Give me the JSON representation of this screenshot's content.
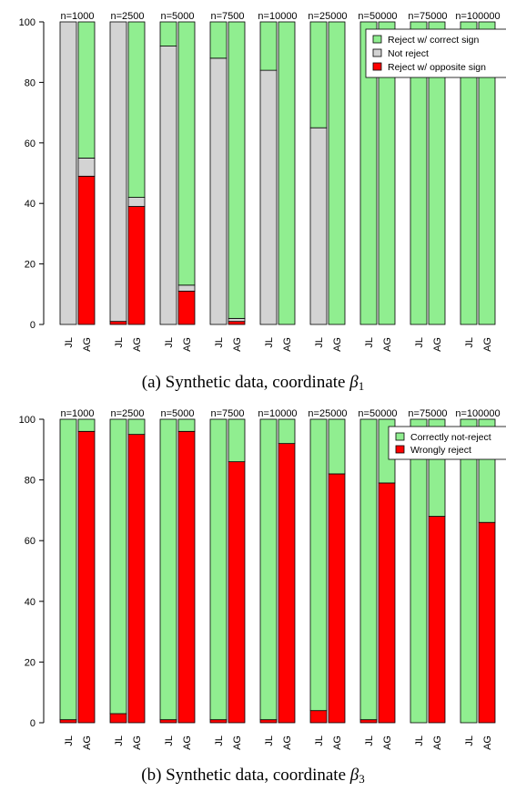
{
  "chart_data": [
    {
      "type": "bar",
      "stacked": true,
      "panel_caption": "(a)  Synthetic data, coordinate β1",
      "caption_prefix": "(a)  Synthetic data, coordinate ",
      "caption_symbol": "β",
      "caption_sub": "1",
      "groups": [
        "n=1000",
        "n=2500",
        "n=5000",
        "n=7500",
        "n=10000",
        "n=25000",
        "n=50000",
        "n=75000",
        "n=100000"
      ],
      "bar_labels": [
        "JL",
        "AG"
      ],
      "ylim": [
        0,
        100
      ],
      "yticks": [
        "0",
        "20",
        "40",
        "60",
        "80",
        "100"
      ],
      "grid": false,
      "legend_position": "top-right",
      "series": [
        {
          "name": "Reject w/ opposite sign",
          "color": "#ff0000",
          "JL": [
            0,
            1,
            0,
            0,
            0,
            0,
            0,
            0,
            0
          ],
          "AG": [
            49,
            39,
            11,
            1,
            0,
            0,
            0,
            0,
            0
          ]
        },
        {
          "name": "Not reject",
          "color": "#d3d3d3",
          "JL": [
            100,
            99,
            92,
            88,
            84,
            65,
            0,
            0,
            0
          ],
          "AG": [
            6,
            3,
            2,
            1,
            0,
            0,
            0,
            0,
            0
          ]
        },
        {
          "name": "Reject w/ correct sign",
          "color": "#90ee90",
          "JL": [
            0,
            0,
            8,
            12,
            16,
            35,
            100,
            100,
            100
          ],
          "AG": [
            45,
            58,
            87,
            98,
            100,
            100,
            100,
            100,
            100
          ]
        }
      ],
      "legend_order": [
        2,
        1,
        0
      ]
    },
    {
      "type": "bar",
      "stacked": true,
      "panel_caption": "(b)  Synthetic data, coordinate β3",
      "caption_prefix": "(b)  Synthetic data, coordinate ",
      "caption_symbol": "β",
      "caption_sub": "3",
      "groups": [
        "n=1000",
        "n=2500",
        "n=5000",
        "n=7500",
        "n=10000",
        "n=25000",
        "n=50000",
        "n=75000",
        "n=100000"
      ],
      "bar_labels": [
        "JL",
        "AG"
      ],
      "ylim": [
        0,
        100
      ],
      "yticks": [
        "0",
        "20",
        "40",
        "60",
        "80",
        "100"
      ],
      "grid": false,
      "legend_position": "top-right",
      "series": [
        {
          "name": "Wrongly reject",
          "color": "#ff0000",
          "JL": [
            1,
            3,
            1,
            1,
            1,
            4,
            1,
            0,
            0
          ],
          "AG": [
            96,
            95,
            96,
            86,
            92,
            82,
            79,
            68,
            66
          ]
        },
        {
          "name": "Correctly not-reject",
          "color": "#90ee90",
          "JL": [
            99,
            97,
            99,
            99,
            99,
            96,
            99,
            100,
            100
          ],
          "AG": [
            4,
            5,
            4,
            14,
            8,
            18,
            21,
            32,
            34
          ]
        }
      ],
      "legend_order": [
        1,
        0
      ]
    }
  ]
}
